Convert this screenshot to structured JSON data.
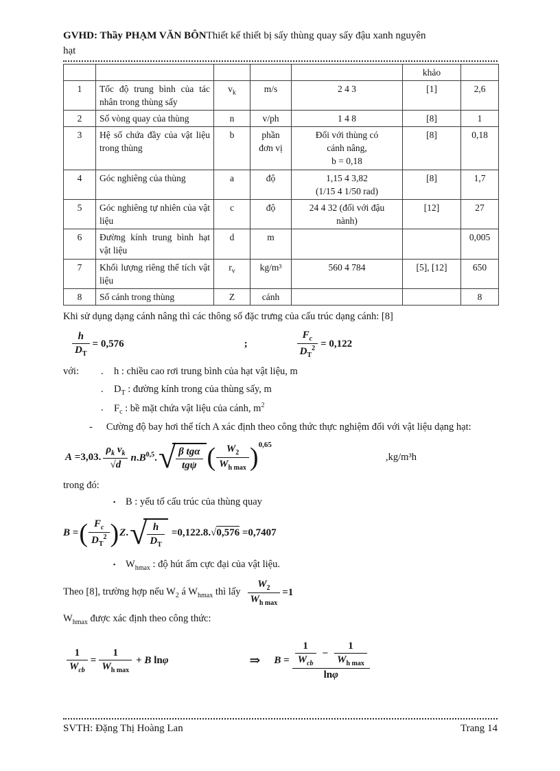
{
  "header": {
    "gvhd": "GVHD: Thầy PHẠM VĂN BÔN",
    "title": "Thiết kế thiết bị sấy thùng quay sấy đậu xanh nguyên",
    "title_line2": "hạt"
  },
  "table": {
    "khao_header": "khảo",
    "rows": [
      {
        "no": "1",
        "desc": "Tốc độ trung bình của tác nhân  trong thùng sấy",
        "sym": "v<sub>k</sub>",
        "unit": "m/s",
        "range": "2 4 3",
        "ref": "[1]",
        "val": "2,6"
      },
      {
        "no": "2",
        "desc": "Số vòng quay của thùng",
        "sym": "n",
        "unit": "v/ph",
        "range": "1 4 8",
        "ref": "[8]",
        "val": "1"
      },
      {
        "no": "3",
        "desc": "Hệ số chứa đầy của vật liệu trong thùng",
        "sym": "b",
        "unit": "phần\nđơn vị",
        "range": "Đối với thùng có\ncánh nâng,\nb = 0,18",
        "ref": "[8]",
        "val": "0,18"
      },
      {
        "no": "4",
        "desc": "Góc nghiêng của thùng",
        "sym": "a",
        "unit": "độ",
        "range": "1,15 4 3,82\n(1/15 4 1/50 rad)",
        "ref": "[8]",
        "val": "1,7"
      },
      {
        "no": "5",
        "desc": "Góc nghiêng tự nhiên của vật liệu",
        "sym": "c",
        "unit": "độ",
        "range": "24 4 32 (đối với đậu\nnành)",
        "ref": "[12]",
        "val": "27"
      },
      {
        "no": "6",
        "desc": "Đường kính trung bình hạt vật liệu",
        "sym": "d",
        "unit": "m",
        "range": "",
        "ref": "",
        "val": "0,005"
      },
      {
        "no": "7",
        "desc": "Khối lượng riêng thể tích vật liệu",
        "sym": "r<sub>v</sub>",
        "unit": "kg/m³",
        "range": "560 4 784",
        "ref": "[5], [12]",
        "val": "650"
      },
      {
        "no": "8",
        "desc": "Số cánh trong thùng",
        "sym": "Z",
        "unit": "cánh",
        "range": "",
        "ref": "",
        "val": "8"
      }
    ]
  },
  "para_intro": "Khi sử dụng dạng cánh nâng thì các thông số đặc trưng của cấu trúc dạng cánh: [8]",
  "math": {
    "f1_num": "<i>h</i>",
    "f1_den": "<i>D</i><sub>T</sub>",
    "f1_res": "= 0,576",
    "f1_sep": ";",
    "f1b_num": "<i>F<sub>c</sub></i>",
    "f1b_den": "<i>D</i><sub>T</sub><sup>2</sup>",
    "f1b_res": "= 0,122"
  },
  "defs": {
    "label": "với:",
    "items": [
      {
        "bullet": ".",
        "html": "h : chiều cao rơi trung bình của hạt vật liệu, m"
      },
      {
        "bullet": ".",
        "html": "D<sub>T</sub> : đường kính trong của thùng sấy, m"
      },
      {
        "bullet": ".",
        "html": "F<sub>c</sub> : bề mặt chứa vật liệu của cánh, m<sup>2</sup>"
      }
    ]
  },
  "para_dash": {
    "dash": "-",
    "text": "Cường độ bay hơi thể tích A xác định theo công thức thực nghiệm đối với vật liệu dạng hạt:"
  },
  "fa": {
    "lhs": "<i>A</i> =3,03.",
    "frac1_num": "<i>ρ<sub>k</sub> v<sub>k</sub></i>",
    "frac1_den": "√<span class='ol'><i>d</i></span>",
    "mid": "<i>n</i>.<i>B</i><sup>0,5</sup>.",
    "rad": "√",
    "frac2_num": "<i>β</i> <i>tgα</i>",
    "frac2_den": "<i>tgψ</i>",
    "lp": "(",
    "rp": ")",
    "frac3_num": "<i>W</i><sub>2</sub>",
    "frac3_den": "<i>W</i><sub>h max</sub>",
    "sup": "0,65",
    "unit": ",kg/m³h"
  },
  "para_trongdo": "trong đó:",
  "bullet_b": {
    "marker": "▪",
    "html": "B : yếu tố cấu trúc của thùng quay"
  },
  "fb": {
    "lhs": "<i>B</i> =",
    "lp": "(",
    "rp": ")",
    "frac1_num": "<i>F<sub>c</sub></i>",
    "frac1_den": "<i>D</i><sub>T</sub><sup>2</sup>",
    "z": "<i>Z</i>.",
    "rad": "√",
    "frac2_num": "<i>h</i>",
    "frac2_den": "<i>D</i><sub>T</sub>",
    "res": "=0,122.8.√<span class='ol'>0,576</span> =0,7407"
  },
  "bullet_w": {
    "marker": "▪",
    "html": "W<sub>hmax</sub> : độ hút ẩm cực đại của vật liệu."
  },
  "para_theo": {
    "before": "Theo [8], trường hợp nếu W<sub>2</sub> á W<sub>hmax</sub> thì lấy",
    "frac_num": "<i>W</i><sub>2</sub>",
    "frac_den": "<i>W</i><sub>h max</sub>",
    "after": "=1"
  },
  "para_whmax": "W<sub>hmax</sub> được xác định theo công thức:",
  "fc": {
    "l_f1_num": "1",
    "l_f1_den": "<i>W<sub>cb</sub></i>",
    "l_eq": "=",
    "l_f2_num": "1",
    "l_f2_den": "<i>W</i><sub>h max</sub>",
    "l_rest": "+ <i>B</i> ln<i>φ</i>",
    "arrow": "⇒",
    "r_lhs": "<i>B</i> =",
    "r_f1_num": "1",
    "r_f1_den": "<i>W<sub>cb</sub></i>",
    "minus": "−",
    "r_f2_num": "1",
    "r_f2_den": "<i>W</i><sub>h max</sub>",
    "r_den": "ln<i>φ</i>"
  },
  "footer": {
    "left": "SVTH: Đặng Thị Hoàng Lan",
    "right": "Trang 14"
  }
}
